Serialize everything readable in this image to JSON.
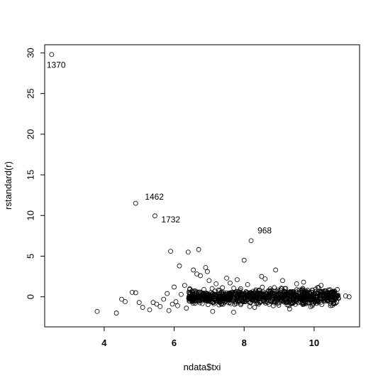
{
  "chart_data": {
    "type": "scatter",
    "title": "",
    "xlabel": "ndata$txi",
    "ylabel": "rstandard(r)",
    "xlim": [
      2.3,
      11.3
    ],
    "ylim": [
      -3.7,
      31.0
    ],
    "x_ticks": [
      4,
      6,
      8,
      10
    ],
    "y_ticks": [
      0,
      5,
      10,
      15,
      20,
      25,
      30
    ],
    "grid": false,
    "legend": "none",
    "marker": "open-circle",
    "annotations": [
      {
        "label": "1370",
        "x": 2.5,
        "y": 29.8
      },
      {
        "label": "1462",
        "x": 4.9,
        "y": 11.5
      },
      {
        "label": "1732",
        "x": 5.45,
        "y": 9.95
      },
      {
        "label": "968",
        "x": 8.2,
        "y": 6.9
      }
    ],
    "points": [
      [
        2.5,
        29.8
      ],
      [
        4.9,
        11.5
      ],
      [
        5.45,
        9.95
      ],
      [
        8.2,
        6.9
      ],
      [
        3.8,
        -1.8
      ],
      [
        4.35,
        -2.0
      ],
      [
        4.5,
        -0.3
      ],
      [
        4.6,
        -0.6
      ],
      [
        4.8,
        0.55
      ],
      [
        4.9,
        0.5
      ],
      [
        5.0,
        -0.7
      ],
      [
        5.1,
        -1.3
      ],
      [
        5.3,
        -1.6
      ],
      [
        5.4,
        -0.7
      ],
      [
        5.5,
        -0.9
      ],
      [
        5.6,
        -1.2
      ],
      [
        5.7,
        -0.3
      ],
      [
        5.8,
        0.4
      ],
      [
        5.85,
        -1.7
      ],
      [
        5.9,
        5.6
      ],
      [
        5.95,
        -0.9
      ],
      [
        6.0,
        1.2
      ],
      [
        6.05,
        -0.6
      ],
      [
        6.1,
        -1.1
      ],
      [
        6.15,
        3.8
      ],
      [
        6.2,
        0.3
      ],
      [
        6.3,
        1.4
      ],
      [
        6.35,
        -1.4
      ],
      [
        6.4,
        5.5
      ],
      [
        6.45,
        1.0
      ],
      [
        6.5,
        0.1
      ],
      [
        6.55,
        3.3
      ],
      [
        6.6,
        -0.8
      ],
      [
        6.65,
        2.8
      ],
      [
        6.7,
        5.8
      ],
      [
        6.75,
        2.6
      ],
      [
        6.8,
        -0.2
      ],
      [
        6.85,
        0.9
      ],
      [
        6.9,
        3.6
      ],
      [
        6.95,
        3.1
      ],
      [
        7.0,
        2.0
      ],
      [
        7.05,
        0.5
      ],
      [
        7.1,
        -1.8
      ],
      [
        7.2,
        1.6
      ],
      [
        7.3,
        0.8
      ],
      [
        7.4,
        -0.4
      ],
      [
        7.5,
        2.3
      ],
      [
        7.6,
        1.7
      ],
      [
        7.7,
        -1.9
      ],
      [
        7.8,
        2.1
      ],
      [
        7.9,
        1.0
      ],
      [
        8.0,
        4.5
      ],
      [
        8.1,
        1.5
      ],
      [
        8.3,
        -1.3
      ],
      [
        8.5,
        2.5
      ],
      [
        8.6,
        2.2
      ],
      [
        8.9,
        3.3
      ],
      [
        9.1,
        2.0
      ],
      [
        9.3,
        -1.5
      ],
      [
        9.5,
        1.6
      ],
      [
        9.7,
        1.8
      ],
      [
        9.9,
        -1.2
      ],
      [
        10.2,
        1.4
      ],
      [
        10.5,
        0.6
      ],
      [
        10.7,
        -0.2
      ],
      [
        10.9,
        0.1
      ],
      [
        11.0,
        0.0
      ]
    ]
  }
}
